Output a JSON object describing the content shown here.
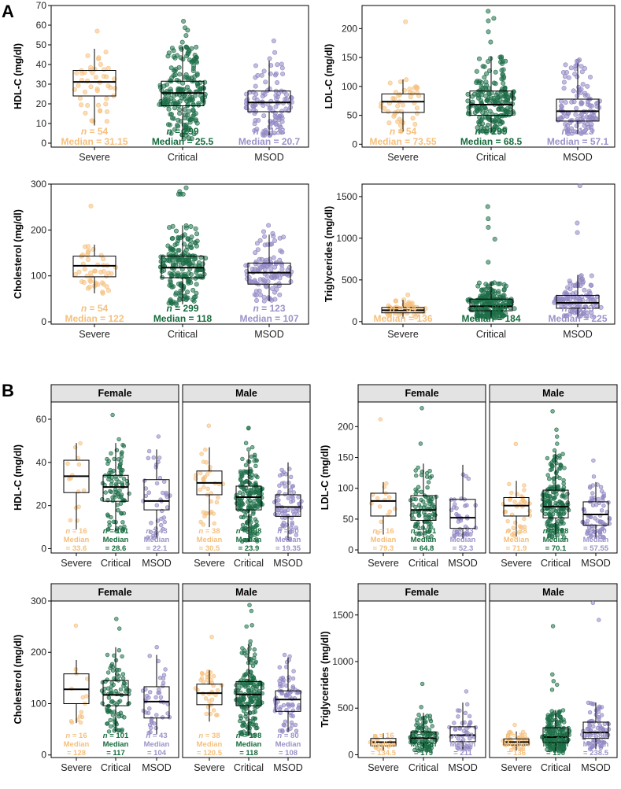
{
  "figure": {
    "panels": [
      {
        "letter": "A"
      },
      {
        "letter": "B"
      }
    ],
    "n_prefix": "n = ",
    "median_prefix": "Median = ",
    "median_word": "Median",
    "eq_prefix": "= "
  },
  "colors": {
    "Severe": "#f5c07d",
    "Critical": "#1e6e48",
    "MSOD": "#8f86c2",
    "Severe_text": "#f5c07d",
    "Critical_text": "#156b3c",
    "MSOD_text": "#9a93c9",
    "strip_fill": "#e3e3e3"
  },
  "chart_data": [
    {
      "type": "box",
      "panel": "A",
      "ylabel": "HDL-C (mg/dl)",
      "ylim": [
        -2,
        70
      ],
      "yticks": [
        0,
        10,
        20,
        30,
        40,
        50,
        60,
        70
      ],
      "categories": [
        "Severe",
        "Critical",
        "MSOD"
      ],
      "groups": [
        {
          "name": "Severe",
          "n": "54",
          "median_label": "31.15",
          "q1": 24,
          "median": 31.15,
          "q3": 37,
          "whisker_low": 9,
          "whisker_high": 48,
          "max": 57
        },
        {
          "name": "Critical",
          "n": "299",
          "median_label": "25.5",
          "q1": 19,
          "median": 25.5,
          "q3": 31.5,
          "whisker_low": 2,
          "whisker_high": 49,
          "max": 62
        },
        {
          "name": "MSOD",
          "n": "123",
          "median_label": "20.7",
          "q1": 16,
          "median": 20.7,
          "q3": 26.5,
          "whisker_low": 4,
          "whisker_high": 42,
          "max": 52
        }
      ]
    },
    {
      "type": "box",
      "panel": "A",
      "ylabel": "LDL-C (mg/dl)",
      "ylim": [
        -5,
        240
      ],
      "yticks": [
        0,
        50,
        100,
        150,
        200
      ],
      "categories": [
        "Severe",
        "Critical",
        "MSOD"
      ],
      "groups": [
        {
          "name": "Severe",
          "n": "54",
          "median_label": "73.55",
          "q1": 55,
          "median": 73.55,
          "q3": 87,
          "whisker_low": 22,
          "whisker_high": 112,
          "max": 212
        },
        {
          "name": "Critical",
          "n": "299",
          "median_label": "68.5",
          "q1": 50,
          "median": 68.5,
          "q3": 92,
          "whisker_low": 20,
          "whisker_high": 152,
          "max": 230
        },
        {
          "name": "MSOD",
          "n": "123",
          "median_label": "57.1",
          "q1": 40,
          "median": 57.1,
          "q3": 78,
          "whisker_low": 18,
          "whisker_high": 140,
          "max": 146
        }
      ]
    },
    {
      "type": "box",
      "panel": "A",
      "ylabel": "Cholesterol (mg/dl)",
      "ylim": [
        -5,
        300
      ],
      "yticks": [
        0,
        100,
        200,
        300
      ],
      "categories": [
        "Severe",
        "Critical",
        "MSOD"
      ],
      "groups": [
        {
          "name": "Severe",
          "n": "54",
          "median_label": "122",
          "q1": 98,
          "median": 122,
          "q3": 143,
          "whisker_low": 62,
          "whisker_high": 168,
          "max": 252
        },
        {
          "name": "Critical",
          "n": "299",
          "median_label": "118",
          "q1": 96,
          "median": 118,
          "q3": 143,
          "whisker_low": 38,
          "whisker_high": 210,
          "max": 292
        },
        {
          "name": "MSOD",
          "n": "123",
          "median_label": "107",
          "q1": 82,
          "median": 107,
          "q3": 128,
          "whisker_low": 45,
          "whisker_high": 190,
          "max": 210
        }
      ]
    },
    {
      "type": "box",
      "panel": "A",
      "ylabel": "Triglycerides (mg/dl)",
      "ylim": [
        -30,
        1650
      ],
      "yticks": [
        0,
        500,
        1000,
        1500
      ],
      "categories": [
        "Severe",
        "Critical",
        "MSOD"
      ],
      "groups": [
        {
          "name": "Severe",
          "n": "54",
          "median_label": "136",
          "q1": 105,
          "median": 136,
          "q3": 170,
          "whisker_low": 40,
          "whisker_high": 260,
          "max": 320
        },
        {
          "name": "Critical",
          "n": "299",
          "median_label": "184",
          "q1": 130,
          "median": 184,
          "q3": 270,
          "whisker_low": 40,
          "whisker_high": 470,
          "max": 1380
        },
        {
          "name": "MSOD",
          "n": "123",
          "median_label": "225",
          "q1": 160,
          "median": 225,
          "q3": 315,
          "whisker_low": 60,
          "whisker_high": 560,
          "max": 1630
        }
      ]
    },
    {
      "type": "box",
      "panel": "B",
      "ylabel": "HDL-C (mg/dl)",
      "ylim": [
        -2,
        68
      ],
      "yticks": [
        0,
        20,
        40,
        60
      ],
      "facets": [
        {
          "strip": "Female",
          "groups": [
            {
              "name": "Severe",
              "n": "16",
              "median_label": "33.6",
              "q1": 26,
              "median": 33.6,
              "q3": 41,
              "whisker_low": 9,
              "whisker_high": 49,
              "max": 49
            },
            {
              "name": "Critical",
              "n": "101",
              "median_label": "28.6",
              "q1": 22,
              "median": 28.6,
              "q3": 34,
              "whisker_low": 8,
              "whisker_high": 49,
              "max": 62
            },
            {
              "name": "MSOD",
              "n": "43",
              "median_label": "22.1",
              "q1": 18,
              "median": 22.1,
              "q3": 32,
              "whisker_low": 5,
              "whisker_high": 46,
              "max": 52
            }
          ]
        },
        {
          "strip": "Male",
          "groups": [
            {
              "name": "Severe",
              "n": "38",
              "median_label": "30.5",
              "q1": 25,
              "median": 30.5,
              "q3": 36,
              "whisker_low": 10,
              "whisker_high": 47,
              "max": 57
            },
            {
              "name": "Critical",
              "n": "198",
              "median_label": "23.9",
              "q1": 18,
              "median": 23.9,
              "q3": 29,
              "whisker_low": 3,
              "whisker_high": 45,
              "max": 56
            },
            {
              "name": "MSOD",
              "n": "80",
              "median_label": "19.35",
              "q1": 15,
              "median": 19.35,
              "q3": 25,
              "whisker_low": 4,
              "whisker_high": 40,
              "max": 40
            }
          ]
        }
      ]
    },
    {
      "type": "box",
      "panel": "B",
      "ylabel": "LDL-C (mg/dl)",
      "ylim": [
        -5,
        240
      ],
      "yticks": [
        0,
        50,
        100,
        150,
        200
      ],
      "facets": [
        {
          "strip": "Female",
          "groups": [
            {
              "name": "Severe",
              "n": "16",
              "median_label": "79.3",
              "q1": 55,
              "median": 79.3,
              "q3": 92,
              "whisker_low": 25,
              "whisker_high": 110,
              "max": 212
            },
            {
              "name": "Critical",
              "n": "101",
              "median_label": "64.8",
              "q1": 48,
              "median": 64.8,
              "q3": 88,
              "whisker_low": 20,
              "whisker_high": 140,
              "max": 230
            },
            {
              "name": "MSOD",
              "n": "43",
              "median_label": "52.3",
              "q1": 35,
              "median": 52.3,
              "q3": 82,
              "whisker_low": 18,
              "whisker_high": 138,
              "max": 138
            }
          ]
        },
        {
          "strip": "Male",
          "groups": [
            {
              "name": "Severe",
              "n": "38",
              "median_label": "71.9",
              "q1": 55,
              "median": 71.9,
              "q3": 85,
              "whisker_low": 22,
              "whisker_high": 112,
              "max": 172
            },
            {
              "name": "Critical",
              "n": "198",
              "median_label": "70.1",
              "q1": 52,
              "median": 70.1,
              "q3": 97,
              "whisker_low": 20,
              "whisker_high": 160,
              "max": 225
            },
            {
              "name": "MSOD",
              "n": "80",
              "median_label": "57.55",
              "q1": 40,
              "median": 57.55,
              "q3": 78,
              "whisker_low": 20,
              "whisker_high": 110,
              "max": 145
            }
          ]
        }
      ]
    },
    {
      "type": "box",
      "panel": "B",
      "ylabel": "Cholesterol (mg/dl)",
      "ylim": [
        -5,
        300
      ],
      "yticks": [
        0,
        100,
        200,
        300
      ],
      "facets": [
        {
          "strip": "Female",
          "groups": [
            {
              "name": "Severe",
              "n": "16",
              "median_label": "128",
              "q1": 100,
              "median": 128,
              "q3": 158,
              "whisker_low": 62,
              "whisker_high": 185,
              "max": 252
            },
            {
              "name": "Critical",
              "n": "101",
              "median_label": "117",
              "q1": 96,
              "median": 117,
              "q3": 145,
              "whisker_low": 45,
              "whisker_high": 210,
              "max": 265
            },
            {
              "name": "MSOD",
              "n": "43",
              "median_label": "104",
              "q1": 72,
              "median": 104,
              "q3": 133,
              "whisker_low": 40,
              "whisker_high": 195,
              "max": 210
            }
          ]
        },
        {
          "strip": "Male",
          "groups": [
            {
              "name": "Severe",
              "n": "38",
              "median_label": "120.5",
              "q1": 98,
              "median": 120.5,
              "q3": 138,
              "whisker_low": 65,
              "whisker_high": 165,
              "max": 230
            },
            {
              "name": "Critical",
              "n": "198",
              "median_label": "118",
              "q1": 96,
              "median": 118,
              "q3": 143,
              "whisker_low": 38,
              "whisker_high": 215,
              "max": 292
            },
            {
              "name": "MSOD",
              "n": "80",
              "median_label": "108",
              "q1": 85,
              "median": 108,
              "q3": 125,
              "whisker_low": 45,
              "whisker_high": 190,
              "max": 195
            }
          ]
        }
      ]
    },
    {
      "type": "box",
      "panel": "B",
      "ylabel": "Triglycerides (mg/dl)",
      "ylim": [
        -30,
        1650
      ],
      "yticks": [
        0,
        500,
        1000,
        1500
      ],
      "facets": [
        {
          "strip": "Female",
          "groups": [
            {
              "name": "Severe",
              "n": "16",
              "median_label": "134.5",
              "q1": 95,
              "median": 134.5,
              "q3": 175,
              "whisker_low": 40,
              "whisker_high": 230,
              "max": 230
            },
            {
              "name": "Critical",
              "n": "101",
              "median_label": "179",
              "q1": 125,
              "median": 179,
              "q3": 245,
              "whisker_low": 40,
              "whisker_high": 450,
              "max": 760
            },
            {
              "name": "MSOD",
              "n": "43",
              "median_label": "211",
              "q1": 140,
              "median": 211,
              "q3": 300,
              "whisker_low": 60,
              "whisker_high": 560,
              "max": 680
            }
          ]
        },
        {
          "strip": "Male",
          "groups": [
            {
              "name": "Severe",
              "n": "38",
              "median_label": "136",
              "q1": 105,
              "median": 136,
              "q3": 170,
              "whisker_low": 45,
              "whisker_high": 250,
              "max": 320
            },
            {
              "name": "Critical",
              "n": "198",
              "median_label": "190",
              "q1": 130,
              "median": 190,
              "q3": 290,
              "whisker_low": 40,
              "whisker_high": 480,
              "max": 1380
            },
            {
              "name": "MSOD",
              "n": "80",
              "median_label": "238.5",
              "q1": 175,
              "median": 238.5,
              "q3": 350,
              "whisker_low": 60,
              "whisker_high": 560,
              "max": 1630
            }
          ]
        }
      ]
    }
  ]
}
